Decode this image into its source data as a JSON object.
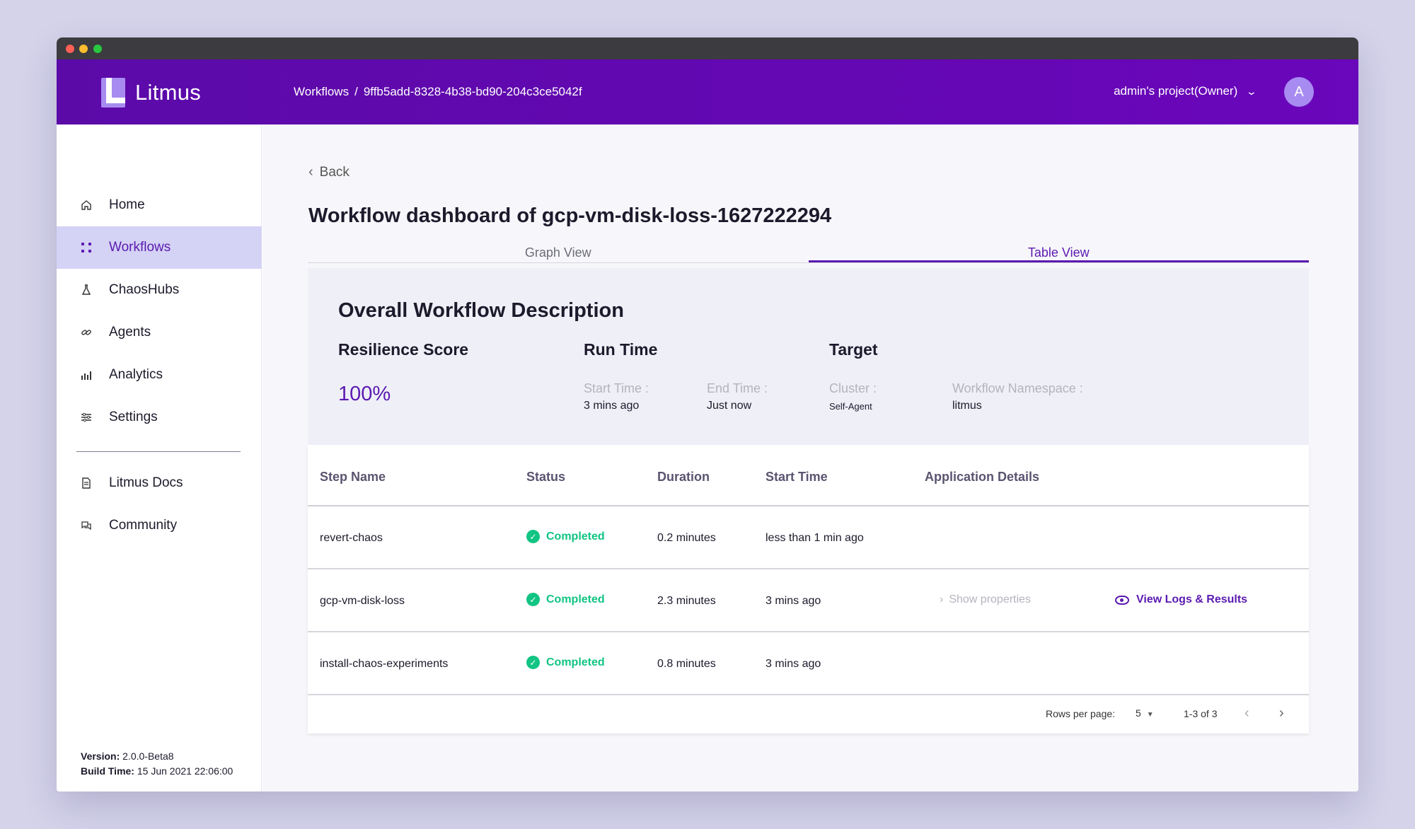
{
  "header": {
    "app_name": "Litmus",
    "breadcrumb": {
      "root": "Workflows",
      "separator": "/",
      "current": "9ffb5add-8328-4b38-bd90-204c3ce5042f"
    },
    "project": "admin's project(Owner)",
    "avatar_letter": "A"
  },
  "sidebar": {
    "items": [
      {
        "label": "Home",
        "icon": "home-icon"
      },
      {
        "label": "Workflows",
        "icon": "workflows-icon"
      },
      {
        "label": "ChaosHubs",
        "icon": "flask-icon"
      },
      {
        "label": "Agents",
        "icon": "link-icon"
      },
      {
        "label": "Analytics",
        "icon": "analytics-icon"
      },
      {
        "label": "Settings",
        "icon": "settings-icon"
      }
    ],
    "secondary": [
      {
        "label": "Litmus Docs",
        "icon": "document-icon"
      },
      {
        "label": "Community",
        "icon": "chat-icon"
      }
    ],
    "active": "Workflows",
    "version_label": "Version:",
    "version_value": "2.0.0-Beta8",
    "build_label": "Build Time:",
    "build_value": "15 Jun 2021 22:06:00"
  },
  "main": {
    "back_label": "Back",
    "title": "Workflow dashboard of gcp-vm-disk-loss-1627222294",
    "tabs": [
      {
        "label": "Graph View"
      },
      {
        "label": "Table View"
      }
    ],
    "active_tab": "Table View",
    "description": {
      "heading": "Overall Workflow Description",
      "resilience_title": "Resilience Score",
      "resilience_value": "100%",
      "run_time_title": "Run Time",
      "start_time_label": "Start Time :",
      "start_time_value": "3 mins ago",
      "end_time_label": "End Time :",
      "end_time_value": "Just now",
      "target_title": "Target",
      "cluster_label": "Cluster :",
      "cluster_value": "Self-Agent",
      "namespace_label": "Workflow Namespace :",
      "namespace_value": "litmus"
    },
    "table": {
      "columns": [
        "Step Name",
        "Status",
        "Duration",
        "Start Time",
        "Application Details"
      ],
      "rows": [
        {
          "step": "revert-chaos",
          "status": "Completed",
          "duration": "0.2 minutes",
          "start": "less than 1 min ago"
        },
        {
          "step": "gcp-vm-disk-loss",
          "status": "Completed",
          "duration": "2.3 minutes",
          "start": "3 mins ago",
          "show_props": "Show properties",
          "view_logs": "View Logs & Results"
        },
        {
          "step": "install-chaos-experiments",
          "status": "Completed",
          "duration": "0.8 minutes",
          "start": "3 mins ago"
        }
      ],
      "pagination": {
        "rows_label": "Rows per page:",
        "rows_value": "5",
        "range": "1-3 of 3"
      }
    }
  },
  "colors": {
    "brand": "#5b0aa8",
    "accent": "#5b1ab0",
    "success": "#11c483"
  }
}
